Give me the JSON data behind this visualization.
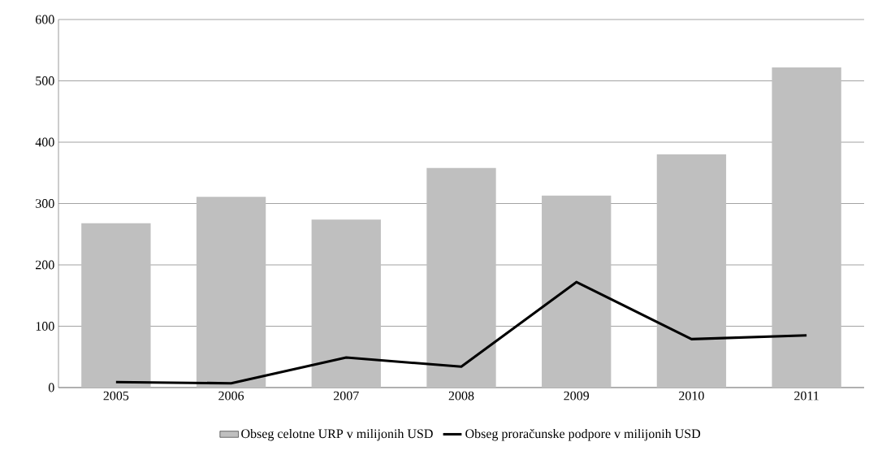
{
  "chart_data": {
    "type": "bar",
    "categories": [
      "2005",
      "2006",
      "2007",
      "2008",
      "2009",
      "2010",
      "2011"
    ],
    "series": [
      {
        "name": "Obseg celotne URP v milijonih USD",
        "color": "#bfbfbf",
        "values": [
          268,
          311,
          274,
          358,
          313,
          380,
          522
        ]
      },
      {
        "name": "Obseg proračunske podpore v milijonih USD",
        "color": "#000000",
        "type": "line",
        "values": [
          9,
          7,
          49,
          34,
          172,
          79,
          85
        ]
      }
    ],
    "ylim": [
      0,
      600
    ],
    "yticks": [
      0,
      100,
      200,
      300,
      400,
      500,
      600
    ],
    "grid": "y",
    "legend": "bottom",
    "marker": "none",
    "line_style": "solid"
  }
}
